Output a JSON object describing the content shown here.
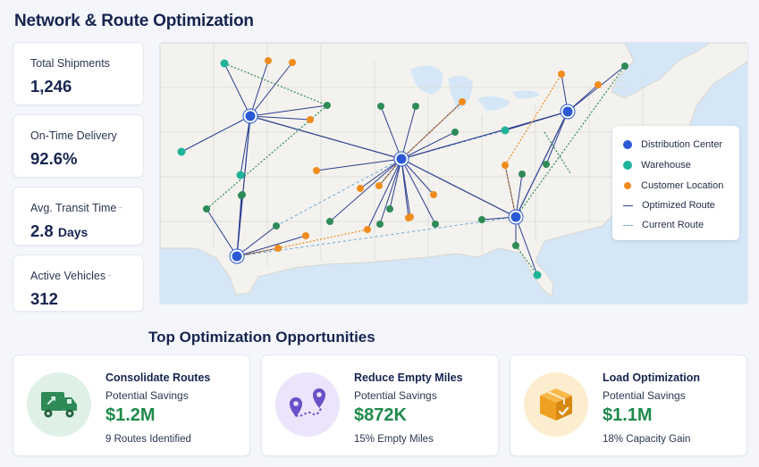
{
  "page": {
    "title": "Network & Route Optimization"
  },
  "kpis": [
    {
      "label": "Total Shipments",
      "value": "1,246"
    },
    {
      "label": "On-Time Delivery",
      "value": "92.6%"
    },
    {
      "label": "Avg. Transit Time",
      "value": "2.8",
      "unit": "Days",
      "mark": "⁻"
    },
    {
      "label": "Active Vehicles",
      "value": "312",
      "mark": "⁻"
    }
  ],
  "map": {
    "legend": [
      {
        "label": "Distribution Center",
        "kind": "dot",
        "color": "#2b59d6"
      },
      {
        "label": "Warehouse",
        "kind": "dot",
        "color": "#20b39a"
      },
      {
        "label": "Customer Location",
        "kind": "dot",
        "color": "#f08c1e"
      },
      {
        "label": "Optimized Route",
        "kind": "solid",
        "color": "#2c3e8f"
      },
      {
        "label": "Current Route",
        "kind": "dashed",
        "color": "#6aa6d8"
      }
    ]
  },
  "opportunities": {
    "title": "Top Optimization Opportunities",
    "subtitle_label": "Potential Savings",
    "cards": [
      {
        "title": "Consolidate Routes",
        "value": "$1.2M",
        "note": "9 Routes Identified",
        "icon": "truck-icon",
        "color": "#2e8b57"
      },
      {
        "title": "Reduce Empty Miles",
        "value": "$872K",
        "note": "15% Empty Miles",
        "icon": "route-pins-icon",
        "color": "#6b4fc8"
      },
      {
        "title": "Load Optimization",
        "value": "$1.1M",
        "note": "18% Capacity Gain",
        "icon": "box-icon",
        "color": "#f0a020"
      }
    ]
  }
}
